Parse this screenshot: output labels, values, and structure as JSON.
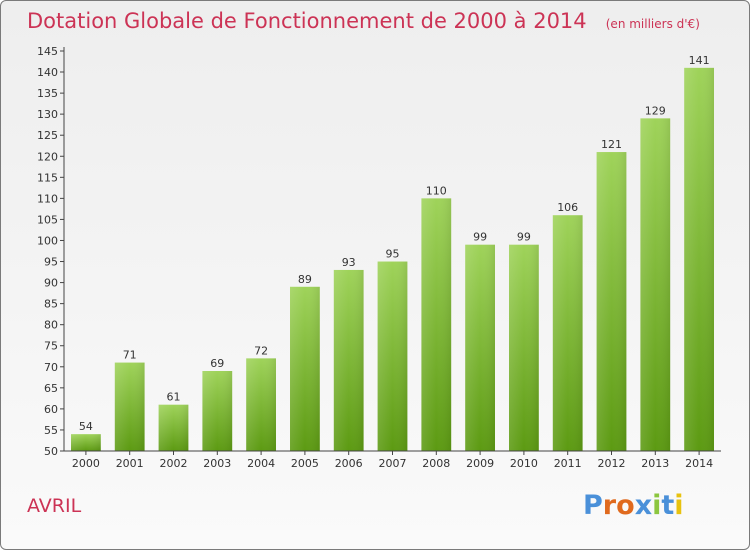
{
  "header": {
    "title": "Dotation Globale de Fonctionnement de 2000 à 2014",
    "subtitle": "(en milliers d'€)"
  },
  "footer": {
    "commune": "AVRIL",
    "brand": "Proxiti"
  },
  "colors": {
    "title": "#cc3355",
    "bar_top": "#9fd35a",
    "bar_bottom": "#5c9a12",
    "brand_letters": [
      "#4a90d9",
      "#e06a1e",
      "#e06a1e",
      "#4a90d9",
      "#8cc63f",
      "#4a90d9",
      "#e8c20f"
    ]
  },
  "chart_data": {
    "type": "bar",
    "categories": [
      "2000",
      "2001",
      "2002",
      "2003",
      "2004",
      "2005",
      "2006",
      "2007",
      "2008",
      "2009",
      "2010",
      "2011",
      "2012",
      "2013",
      "2014"
    ],
    "values": [
      54,
      71,
      61,
      69,
      72,
      89,
      93,
      95,
      110,
      99,
      99,
      106,
      121,
      129,
      141
    ],
    "ylim": [
      50,
      145
    ],
    "yticks": [
      50,
      55,
      60,
      65,
      70,
      75,
      80,
      85,
      90,
      95,
      100,
      105,
      110,
      115,
      120,
      125,
      130,
      135,
      140,
      145
    ],
    "grid": false,
    "data_labels": true
  }
}
